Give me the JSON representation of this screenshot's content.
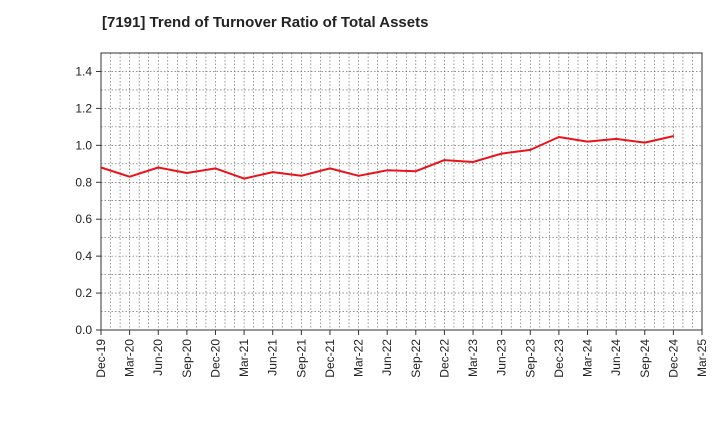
{
  "chart_data": {
    "type": "line",
    "title": "[7191]  Trend of Turnover Ratio of Total Assets",
    "xlabel": "",
    "ylabel": "",
    "x_tick_labels": [
      "Dec-19",
      "Mar-20",
      "Jun-20",
      "Sep-20",
      "Dec-20",
      "Mar-21",
      "Jun-21",
      "Sep-21",
      "Dec-21",
      "Mar-22",
      "Jun-22",
      "Sep-22",
      "Dec-22",
      "Mar-23",
      "Jun-23",
      "Sep-23",
      "Dec-23",
      "Mar-24",
      "Jun-24",
      "Sep-24",
      "Dec-24",
      "Mar-25"
    ],
    "y_ticks": [
      0.0,
      0.2,
      0.4,
      0.6,
      0.8,
      1.0,
      1.2,
      1.4
    ],
    "y_tick_labels": [
      "0.0",
      "0.2",
      "0.4",
      "0.6",
      "0.8",
      "1.0",
      "1.2",
      "1.4"
    ],
    "ylim": [
      0,
      1.5
    ],
    "grid": true,
    "line_color": "#e8141c",
    "series": [
      {
        "x": [
          "Dec-19",
          "Mar-20",
          "Jun-20",
          "Sep-20",
          "Dec-20",
          "Mar-21",
          "Jun-21",
          "Sep-21",
          "Dec-21",
          "Mar-22",
          "Jun-22",
          "Sep-22",
          "Dec-22",
          "Mar-23",
          "Jun-23",
          "Sep-23",
          "Dec-23",
          "Mar-24",
          "Jun-24",
          "Sep-24",
          "Dec-24"
        ],
        "values": [
          0.88,
          0.83,
          0.88,
          0.85,
          0.875,
          0.82,
          0.855,
          0.835,
          0.875,
          0.835,
          0.865,
          0.86,
          0.92,
          0.91,
          0.955,
          0.975,
          1.045,
          1.02,
          1.035,
          1.015,
          1.05
        ]
      }
    ]
  }
}
